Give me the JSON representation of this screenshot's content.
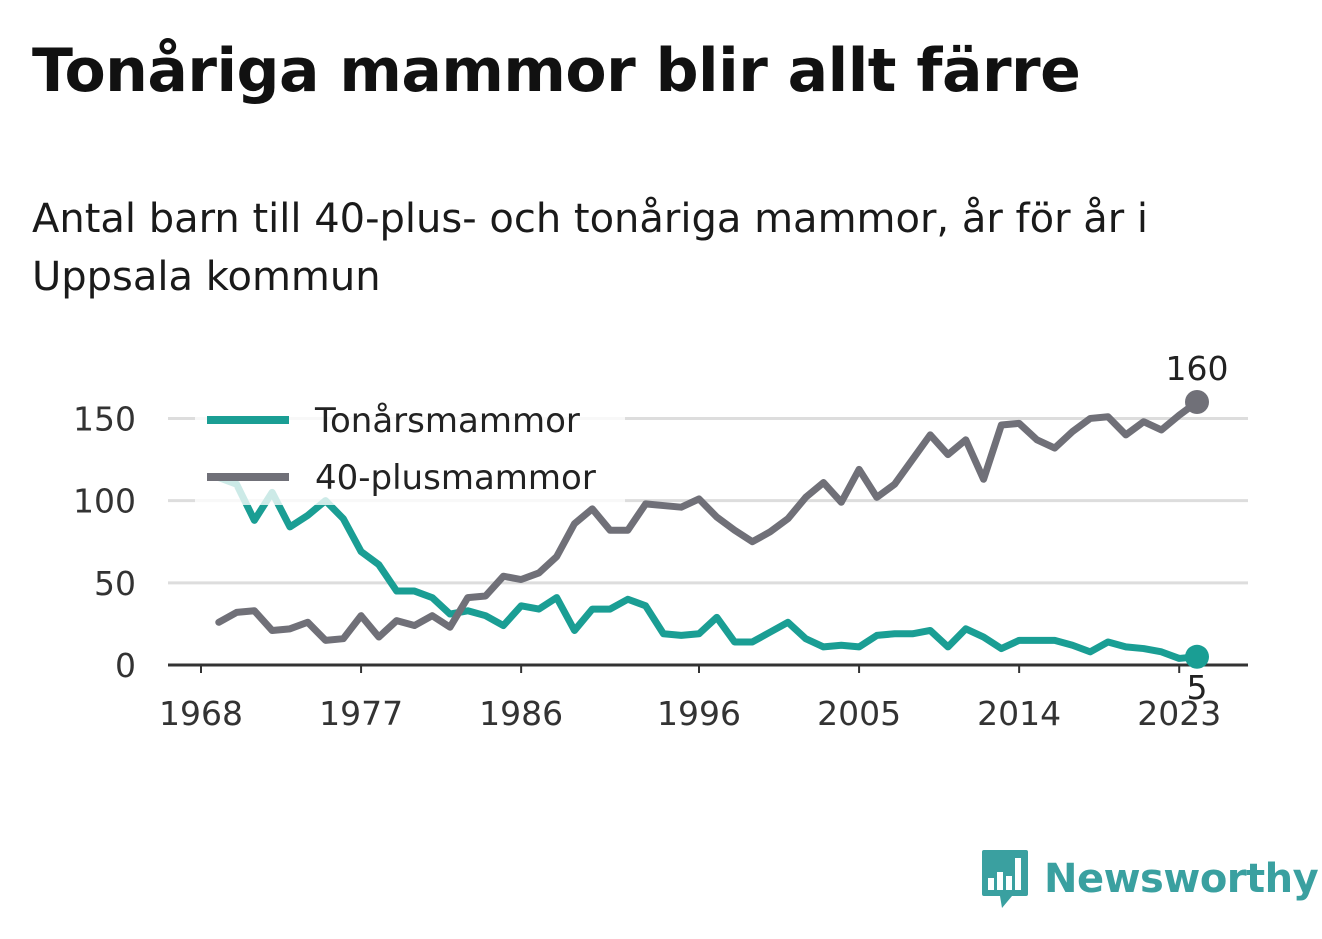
{
  "header": {
    "title": "Tonåriga mammor blir allt färre",
    "subtitle": "Antal barn till 40-plus- och tonåriga mammor, år för år i Uppsala kommun"
  },
  "brand": {
    "name": "Newsworthy",
    "icon": "bar-chart-speech-bubble-icon",
    "color": "#3aa0a0"
  },
  "chart_data": {
    "type": "line",
    "title": "Tonåriga mammor blir allt färre",
    "subtitle": "Antal barn till 40-plus- och tonåriga mammor, år för år i Uppsala kommun",
    "xlabel": "",
    "ylabel": "",
    "xlim": [
      1968,
      2026
    ],
    "ylim": [
      0,
      160
    ],
    "x_ticks": [
      "1968",
      "1977",
      "1986",
      "1996",
      "2005",
      "2014",
      "2023"
    ],
    "y_ticks": [
      "0",
      "50",
      "100",
      "150"
    ],
    "grid": true,
    "legend_position": "top-left",
    "x": [
      1969,
      1970,
      1971,
      1972,
      1973,
      1974,
      1975,
      1976,
      1977,
      1978,
      1979,
      1980,
      1981,
      1982,
      1983,
      1984,
      1985,
      1986,
      1987,
      1988,
      1989,
      1990,
      1991,
      1992,
      1993,
      1994,
      1995,
      1996,
      1997,
      1998,
      1999,
      2000,
      2001,
      2002,
      2003,
      2004,
      2005,
      2006,
      2007,
      2008,
      2009,
      2010,
      2011,
      2012,
      2013,
      2014,
      2015,
      2016,
      2017,
      2018,
      2019,
      2020,
      2021,
      2022,
      2023,
      2024
    ],
    "series": [
      {
        "name": "Tonårsmammor",
        "color": "#1a9e94",
        "values": [
          114,
          110,
          88,
          105,
          84,
          91,
          100,
          89,
          69,
          61,
          45,
          45,
          41,
          31,
          33,
          30,
          24,
          36,
          34,
          41,
          21,
          34,
          34,
          40,
          36,
          19,
          18,
          19,
          29,
          14,
          14,
          20,
          26,
          16,
          11,
          12,
          11,
          18,
          19,
          19,
          21,
          11,
          22,
          17,
          10,
          15,
          15,
          15,
          12,
          8,
          14,
          11,
          10,
          8,
          4,
          5
        ],
        "end_label": "5"
      },
      {
        "name": "40-plusmammor",
        "color": "#707078",
        "values": [
          26,
          32,
          33,
          21,
          22,
          26,
          15,
          16,
          30,
          17,
          27,
          24,
          30,
          23,
          41,
          42,
          54,
          52,
          56,
          66,
          86,
          95,
          82,
          82,
          98,
          97,
          96,
          101,
          90,
          82,
          75,
          81,
          89,
          102,
          111,
          99,
          119,
          102,
          110,
          125,
          140,
          128,
          137,
          113,
          146,
          147,
          137,
          132,
          142,
          150,
          151,
          140,
          148,
          143,
          152,
          160
        ],
        "end_label": "160"
      }
    ]
  }
}
